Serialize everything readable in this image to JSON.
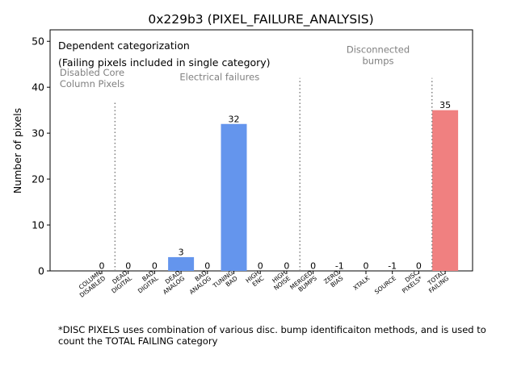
{
  "chart_data": {
    "type": "bar",
    "title": "0x229b3 (PIXEL_FAILURE_ANALYSIS)",
    "xlabel": "",
    "ylabel": "Number of pixels",
    "ylim": [
      0,
      52.5
    ],
    "yticks": [
      0,
      10,
      20,
      30,
      40,
      50
    ],
    "grid": false,
    "categories": [
      [
        "COLUMN",
        "DISABLED"
      ],
      [
        "DEAD",
        "DIGITAL"
      ],
      [
        "BAD",
        "DIGITAL"
      ],
      [
        "DEAD",
        "ANALOG"
      ],
      [
        "BAD",
        "ANALOG"
      ],
      [
        "TUNING",
        "BAD"
      ],
      [
        "HIGH",
        "ENC"
      ],
      [
        "HIGH",
        "NOISE"
      ],
      [
        "MERGED",
        "BUMPS"
      ],
      [
        "ZERO",
        "BIAS"
      ],
      [
        "XTALK"
      ],
      [
        "SOURCE"
      ],
      [
        "DISC",
        "PIXELS*"
      ],
      [
        "TOTAL",
        "FAILING"
      ]
    ],
    "values": [
      0,
      0,
      0,
      3,
      0,
      32,
      0,
      0,
      0,
      -1,
      0,
      -1,
      0,
      35
    ],
    "bar_colors": [
      "#6495ED",
      "#6495ED",
      "#6495ED",
      "#6495ED",
      "#6495ED",
      "#6495ED",
      "#6495ED",
      "#6495ED",
      "#6495ED",
      "#6495ED",
      "#6495ED",
      "#6495ED",
      "#6495ED",
      "#F08080"
    ],
    "value_labels": [
      "0",
      "0",
      "0",
      "3",
      "0",
      "32",
      "0",
      "0",
      "0",
      "-1",
      "0",
      "-1",
      "0",
      "35"
    ],
    "separators": [
      {
        "after_index": 0,
        "top": 37
      },
      {
        "after_index": 7,
        "top": 42
      },
      {
        "after_index": 12,
        "top": 42
      }
    ],
    "group_labels": [
      {
        "lines": [
          "Disabled Core",
          "Column Pixels"
        ],
        "center_index": 0,
        "y": 42.5
      },
      {
        "lines": [
          "Electrical failures"
        ],
        "center_index": 4,
        "y": 41.5
      },
      {
        "lines": [
          "Disconnected",
          "bumps"
        ],
        "center_index": 10,
        "y": 47.5
      }
    ],
    "annotation": {
      "line1": "Dependent categorization",
      "line2": "(Failing pixels included in single category)"
    }
  },
  "footnote": "*DISC PIXELS uses combination of various disc. bump identificaiton methods, and is used to count the TOTAL FAILING category"
}
